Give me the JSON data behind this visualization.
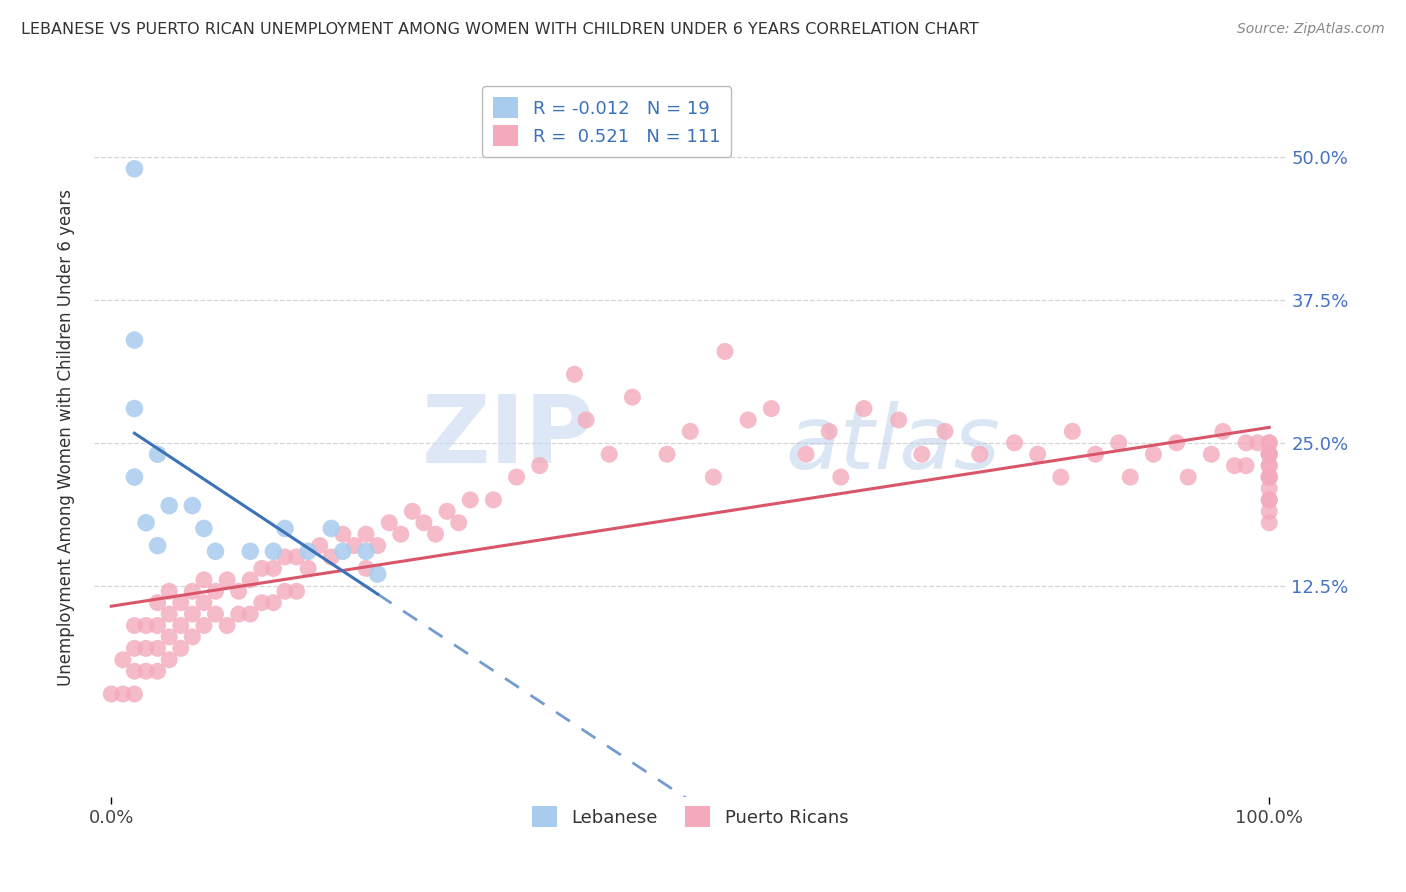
{
  "title": "LEBANESE VS PUERTO RICAN UNEMPLOYMENT AMONG WOMEN WITH CHILDREN UNDER 6 YEARS CORRELATION CHART",
  "source": "Source: ZipAtlas.com",
  "ylabel": "Unemployment Among Women with Children Under 6 years",
  "ylim": [
    -0.06,
    0.57
  ],
  "xlim": [
    -0.015,
    1.015
  ],
  "lebanese_R": -0.012,
  "lebanese_N": 19,
  "puerto_rican_R": 0.521,
  "puerto_rican_N": 111,
  "lebanese_color": "#A8CCEE",
  "puerto_rican_color": "#F4AABC",
  "lebanese_line_color": "#3B72B8",
  "puerto_rican_line_color": "#D9566A",
  "grid_color": "#CCCCCC",
  "background_color": "#FFFFFF",
  "watermark_zip": "ZIP",
  "watermark_atlas": "atlas",
  "lebanese_x": [
    0.02,
    0.02,
    0.02,
    0.02,
    0.03,
    0.04,
    0.04,
    0.05,
    0.07,
    0.08,
    0.09,
    0.12,
    0.14,
    0.15,
    0.17,
    0.19,
    0.2,
    0.22,
    0.23
  ],
  "lebanese_y": [
    0.49,
    0.34,
    0.28,
    0.22,
    0.18,
    0.24,
    0.16,
    0.195,
    0.195,
    0.175,
    0.155,
    0.155,
    0.155,
    0.175,
    0.155,
    0.175,
    0.155,
    0.155,
    0.135
  ],
  "pr_x": [
    0.0,
    0.01,
    0.01,
    0.02,
    0.02,
    0.02,
    0.02,
    0.03,
    0.03,
    0.03,
    0.04,
    0.04,
    0.04,
    0.04,
    0.05,
    0.05,
    0.05,
    0.05,
    0.06,
    0.06,
    0.06,
    0.07,
    0.07,
    0.07,
    0.08,
    0.08,
    0.08,
    0.09,
    0.09,
    0.1,
    0.1,
    0.11,
    0.11,
    0.12,
    0.12,
    0.13,
    0.13,
    0.14,
    0.14,
    0.15,
    0.15,
    0.16,
    0.16,
    0.17,
    0.18,
    0.19,
    0.2,
    0.21,
    0.22,
    0.22,
    0.23,
    0.24,
    0.25,
    0.26,
    0.27,
    0.28,
    0.29,
    0.3,
    0.31,
    0.33,
    0.35,
    0.37,
    0.4,
    0.41,
    0.43,
    0.45,
    0.48,
    0.5,
    0.52,
    0.53,
    0.55,
    0.57,
    0.6,
    0.62,
    0.63,
    0.65,
    0.68,
    0.7,
    0.72,
    0.75,
    0.78,
    0.8,
    0.82,
    0.83,
    0.85,
    0.87,
    0.88,
    0.9,
    0.92,
    0.93,
    0.95,
    0.96,
    0.97,
    0.98,
    0.98,
    0.99,
    1.0,
    1.0,
    1.0,
    1.0,
    1.0,
    1.0,
    1.0,
    1.0,
    1.0,
    1.0,
    1.0,
    1.0,
    1.0,
    1.0,
    1.0
  ],
  "pr_y": [
    0.03,
    0.03,
    0.06,
    0.03,
    0.05,
    0.07,
    0.09,
    0.05,
    0.07,
    0.09,
    0.05,
    0.07,
    0.09,
    0.11,
    0.06,
    0.08,
    0.1,
    0.12,
    0.07,
    0.09,
    0.11,
    0.08,
    0.1,
    0.12,
    0.09,
    0.11,
    0.13,
    0.1,
    0.12,
    0.09,
    0.13,
    0.1,
    0.12,
    0.1,
    0.13,
    0.11,
    0.14,
    0.11,
    0.14,
    0.12,
    0.15,
    0.12,
    0.15,
    0.14,
    0.16,
    0.15,
    0.17,
    0.16,
    0.14,
    0.17,
    0.16,
    0.18,
    0.17,
    0.19,
    0.18,
    0.17,
    0.19,
    0.18,
    0.2,
    0.2,
    0.22,
    0.23,
    0.31,
    0.27,
    0.24,
    0.29,
    0.24,
    0.26,
    0.22,
    0.33,
    0.27,
    0.28,
    0.24,
    0.26,
    0.22,
    0.28,
    0.27,
    0.24,
    0.26,
    0.24,
    0.25,
    0.24,
    0.22,
    0.26,
    0.24,
    0.25,
    0.22,
    0.24,
    0.25,
    0.22,
    0.24,
    0.26,
    0.23,
    0.25,
    0.23,
    0.25,
    0.25,
    0.24,
    0.23,
    0.22,
    0.22,
    0.24,
    0.2,
    0.25,
    0.23,
    0.22,
    0.21,
    0.24,
    0.2,
    0.19,
    0.18
  ]
}
